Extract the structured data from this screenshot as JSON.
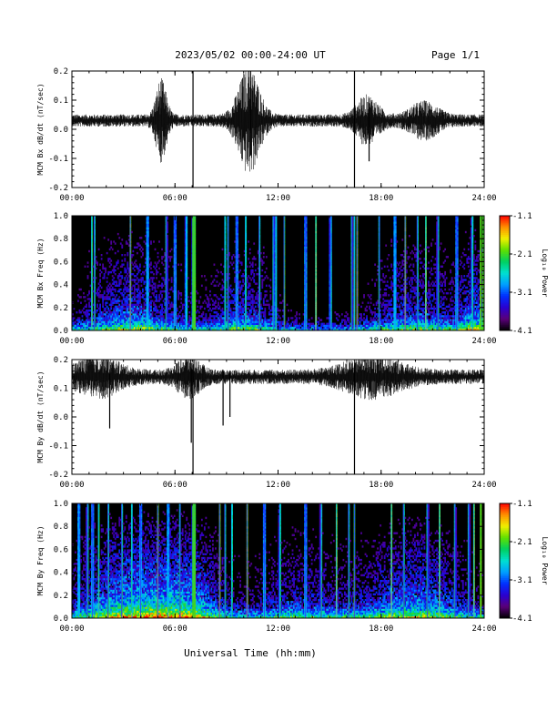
{
  "header": {
    "title": "2023/05/02  00:00-24:00 UT",
    "page": "Page 1/1"
  },
  "x_axis": {
    "label": "Universal Time (hh:mm)",
    "range_hours": [
      0,
      24
    ],
    "ticks": [
      "00:00",
      "06:00",
      "12:00",
      "18:00",
      "24:00"
    ]
  },
  "colorbar": {
    "label": "Log₁₀ Power",
    "tick_labels": [
      "-1.1",
      "-2.1",
      "-3.1",
      "-4.1"
    ],
    "range": [
      -4.1,
      -1.1
    ],
    "colors": [
      "#000000",
      "#5a007a",
      "#2a00d0",
      "#0030ff",
      "#00a0ff",
      "#00e0d0",
      "#00d060",
      "#60e000",
      "#f0f000",
      "#ff9000",
      "#ff0000"
    ]
  },
  "chart_data": [
    {
      "type": "line",
      "ylabel": "MCM Bx dB/dt (nT/sec)",
      "ylim": [
        -0.2,
        0.2
      ],
      "yticks": [
        "0.2",
        "0.1",
        "0.0",
        "-0.1",
        "-0.2"
      ],
      "baseline": 0.03,
      "noise_amplitude": 0.015,
      "activity_bursts": [
        {
          "t": 5.2,
          "width": 0.4,
          "amp": 0.09
        },
        {
          "t": 10.3,
          "width": 0.8,
          "amp": 0.12
        },
        {
          "t": 17.2,
          "width": 0.8,
          "amp": 0.05
        },
        {
          "t": 20.5,
          "width": 1.0,
          "amp": 0.035
        }
      ],
      "spikes": [
        {
          "t": 7.05,
          "min": -0.2,
          "max": 0.2
        },
        {
          "t": 16.45,
          "min": -0.2,
          "max": 0.2
        },
        {
          "t": 10.4,
          "min": -0.09,
          "max": 0.2
        },
        {
          "t": 17.3,
          "min": -0.11,
          "max": 0.09
        }
      ]
    },
    {
      "type": "heatmap",
      "ylabel": "MCM Bx Freq (Hz)",
      "ylim": [
        0,
        1.0
      ],
      "yticks": [
        "1.0",
        "0.8",
        "0.6",
        "0.4",
        "0.2",
        "0.0"
      ],
      "broadband_lines_hours": [
        1.15,
        1.3,
        3.4,
        4.4,
        5.5,
        6.0,
        6.65,
        7.05,
        7.15,
        8.9,
        9.1,
        9.6,
        10.1,
        10.9,
        11.75,
        11.9,
        12.35,
        13.6,
        14.2,
        15.05,
        16.3,
        16.45,
        16.6,
        17.9,
        18.8,
        19.4,
        20.1,
        20.6,
        21.3,
        22.4,
        23.3,
        23.8,
        23.95
      ]
    },
    {
      "type": "line",
      "ylabel": "MCM By dB/dt (nT/sec)",
      "ylim": [
        -0.2,
        0.2
      ],
      "yticks": [
        "0.2",
        "0.1",
        "0.0",
        "-0.1",
        "-0.2"
      ],
      "baseline": 0.14,
      "noise_amplitude": 0.018,
      "activity_bursts": [
        {
          "t": 1.5,
          "width": 1.5,
          "amp": 0.04
        },
        {
          "t": 6.8,
          "width": 0.8,
          "amp": 0.04
        },
        {
          "t": 17.5,
          "width": 2.0,
          "amp": 0.04
        }
      ],
      "spikes": [
        {
          "t": 7.05,
          "min": -0.2,
          "max": 0.18
        },
        {
          "t": 16.45,
          "min": -0.2,
          "max": 0.18
        },
        {
          "t": 2.2,
          "min": -0.04,
          "max": 0.15
        },
        {
          "t": 6.95,
          "min": -0.09,
          "max": 0.17
        },
        {
          "t": 8.8,
          "min": -0.03,
          "max": 0.16
        },
        {
          "t": 9.2,
          "min": 0.0,
          "max": 0.16
        }
      ]
    },
    {
      "type": "heatmap",
      "ylabel": "MCM By Freq (Hz)",
      "ylim": [
        0,
        1.0
      ],
      "yticks": [
        "1.0",
        "0.8",
        "0.6",
        "0.4",
        "0.2",
        "0.0"
      ],
      "broadband_lines_hours": [
        0.4,
        0.9,
        1.2,
        1.55,
        2.1,
        2.9,
        3.5,
        4.0,
        5.0,
        5.6,
        6.3,
        7.05,
        7.15,
        8.6,
        8.9,
        9.3,
        10.2,
        11.2,
        12.1,
        13.6,
        14.5,
        15.4,
        16.1,
        16.45,
        18.6,
        19.3,
        20.7,
        21.4,
        22.3,
        23.1,
        23.4,
        23.8
      ]
    }
  ]
}
